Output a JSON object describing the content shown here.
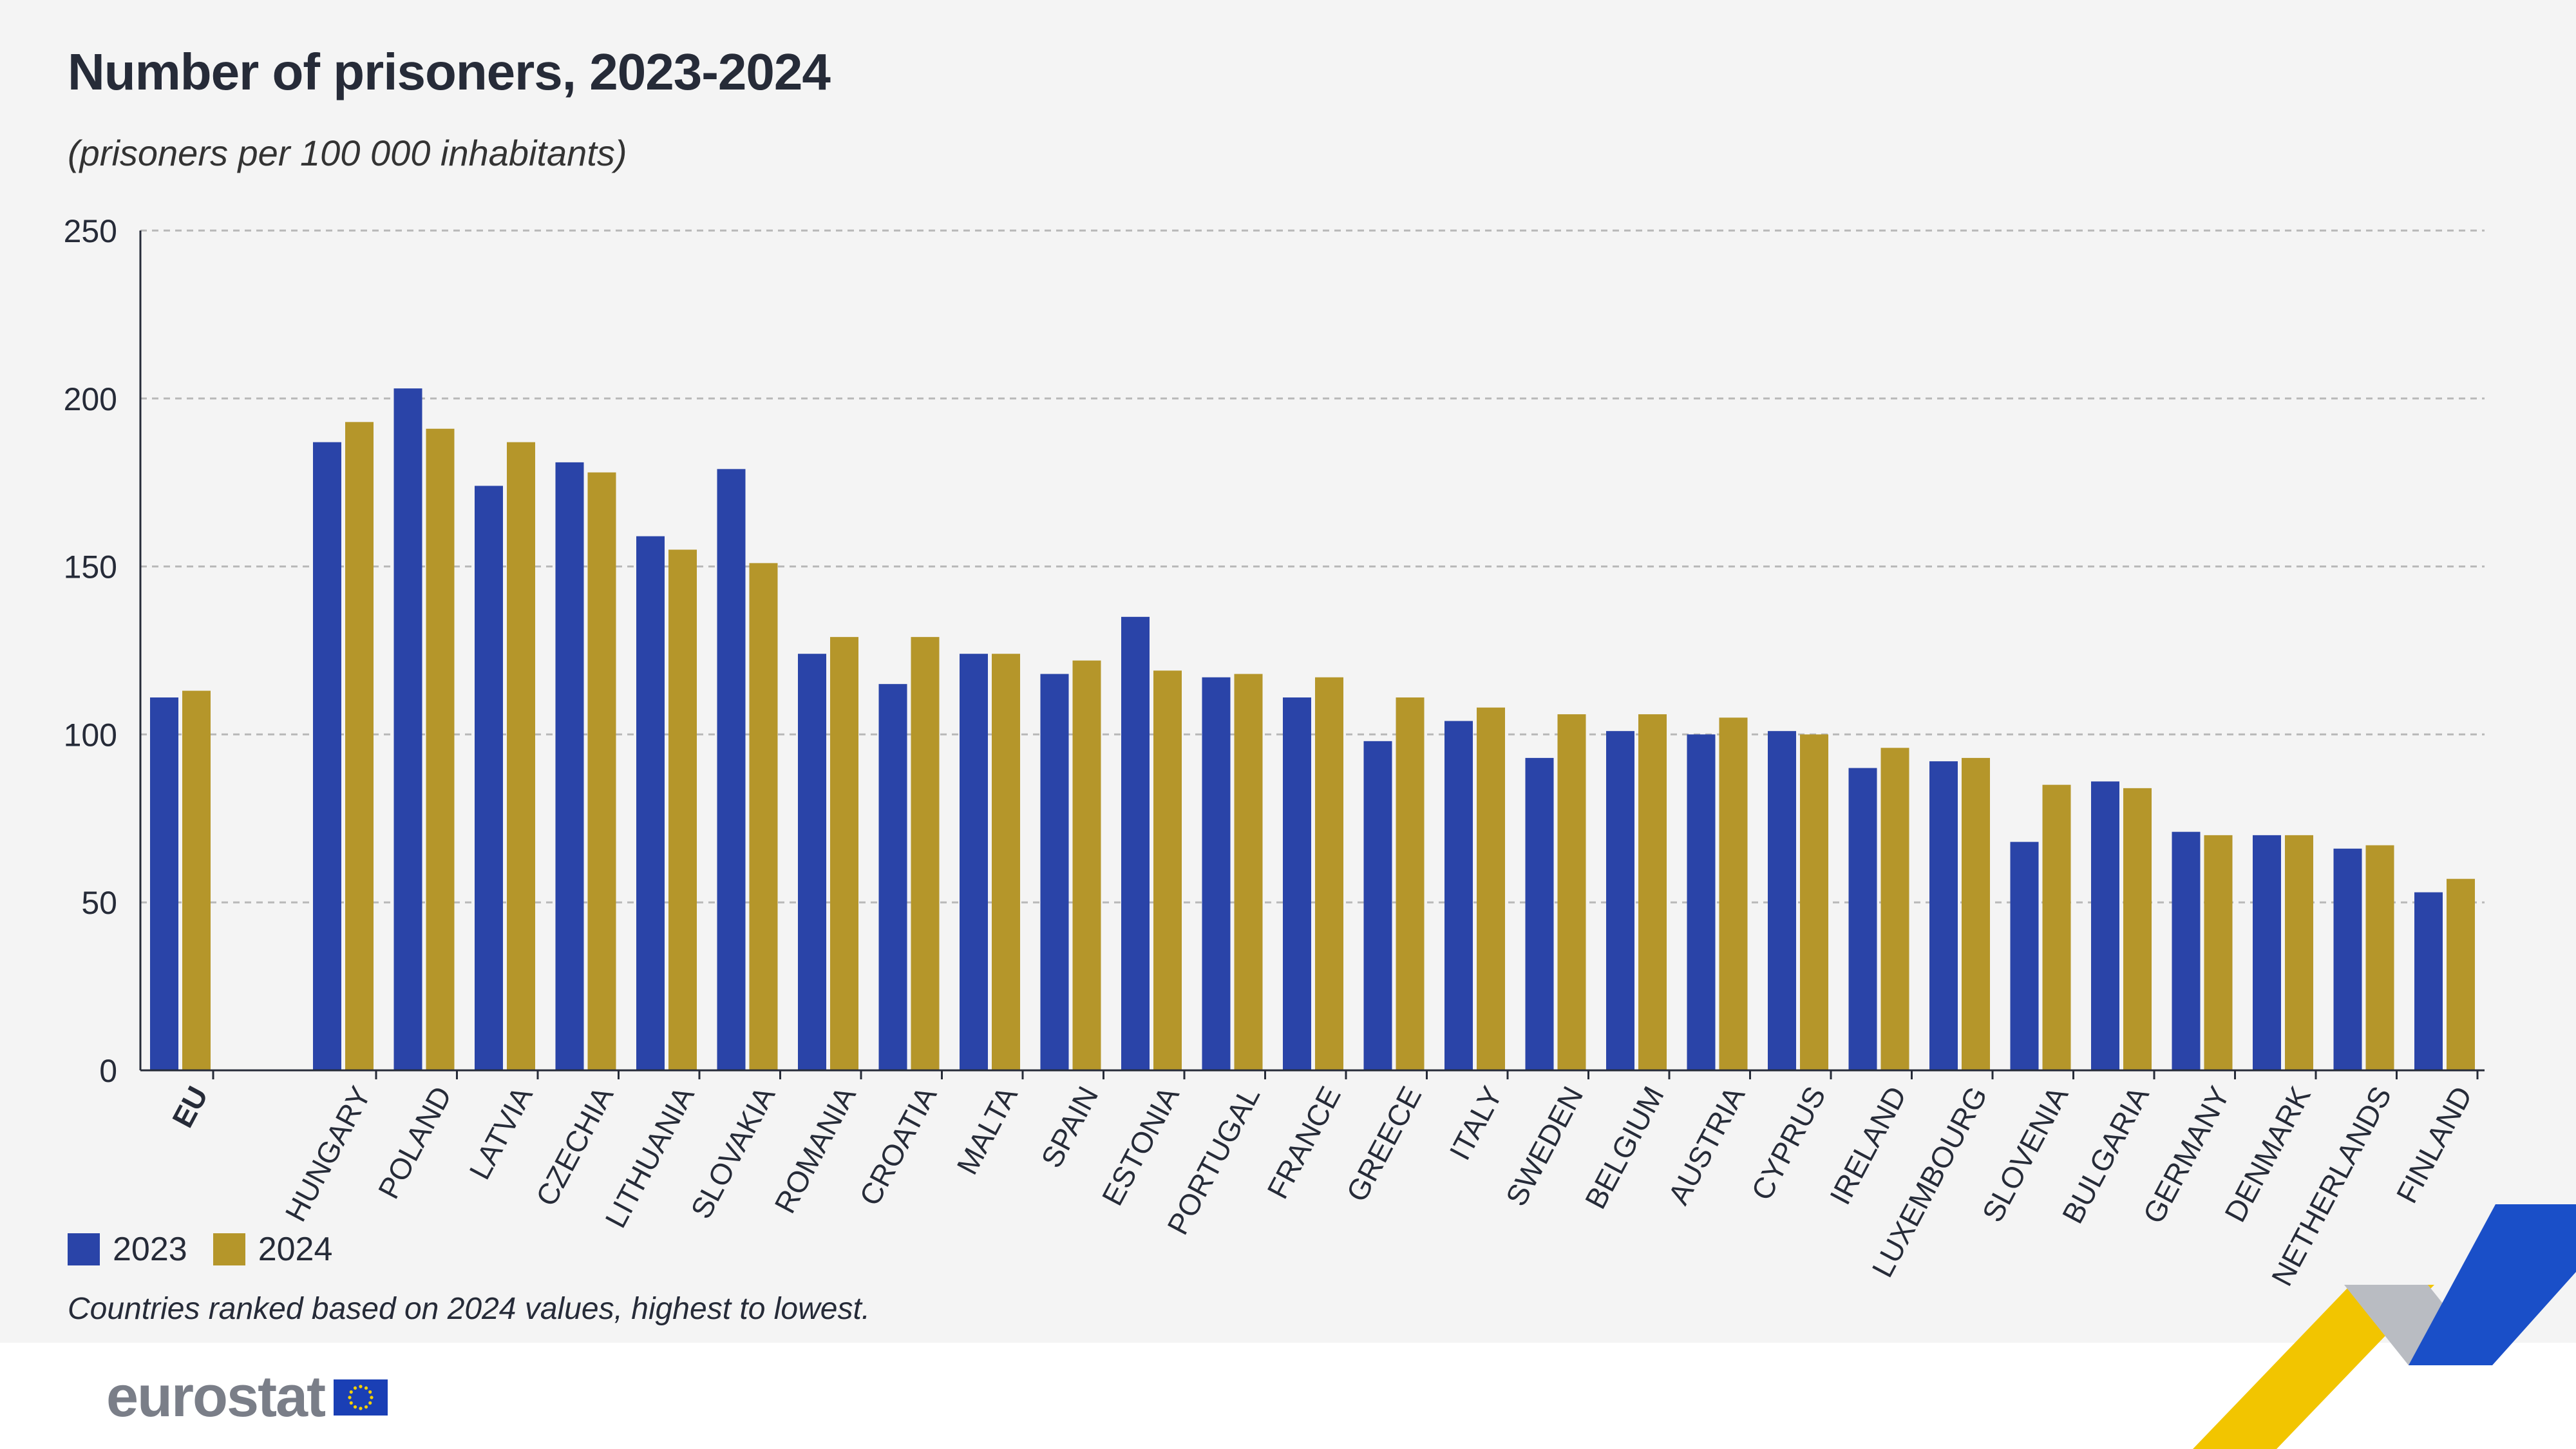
{
  "chart_data": {
    "type": "bar",
    "title": "Number of prisoners, 2023-2024",
    "subtitle": "(prisoners per 100 000 inhabitants)",
    "categories": [
      "EU",
      "HUNGARY",
      "POLAND",
      "LATVIA",
      "CZECHIA",
      "LITHUANIA",
      "SLOVAKIA",
      "ROMANIA",
      "CROATIA",
      "MALTA",
      "SPAIN",
      "ESTONIA",
      "PORTUGAL",
      "FRANCE",
      "GREECE",
      "ITALY",
      "SWEDEN",
      "BELGIUM",
      "AUSTRIA",
      "CYPRUS",
      "IRELAND",
      "LUXEMBOURG",
      "SLOVENIA",
      "BULGARIA",
      "GERMANY",
      "DENMARK",
      "NETHERLANDS",
      "FINLAND"
    ],
    "series": [
      {
        "name": "2023",
        "color": "#2a44a8",
        "values": [
          111,
          187,
          203,
          174,
          181,
          159,
          179,
          124,
          115,
          124,
          118,
          135,
          117,
          111,
          98,
          104,
          93,
          101,
          100,
          101,
          90,
          92,
          68,
          86,
          71,
          70,
          66,
          53
        ]
      },
      {
        "name": "2024",
        "color": "#b5962a",
        "values": [
          113,
          193,
          191,
          187,
          178,
          155,
          151,
          129,
          129,
          124,
          122,
          119,
          118,
          117,
          111,
          108,
          106,
          106,
          105,
          100,
          96,
          93,
          85,
          84,
          70,
          70,
          67,
          57
        ]
      }
    ],
    "ylim": [
      0,
      250
    ],
    "yticks": [
      0,
      50,
      100,
      150,
      200,
      250
    ],
    "grid": true,
    "legend_position": "bottom-left",
    "note": "Countries ranked based on 2024 values, highest to lowest."
  },
  "branding": {
    "logo_text": "eurostat",
    "flag_icon": "eu-flag-icon"
  }
}
